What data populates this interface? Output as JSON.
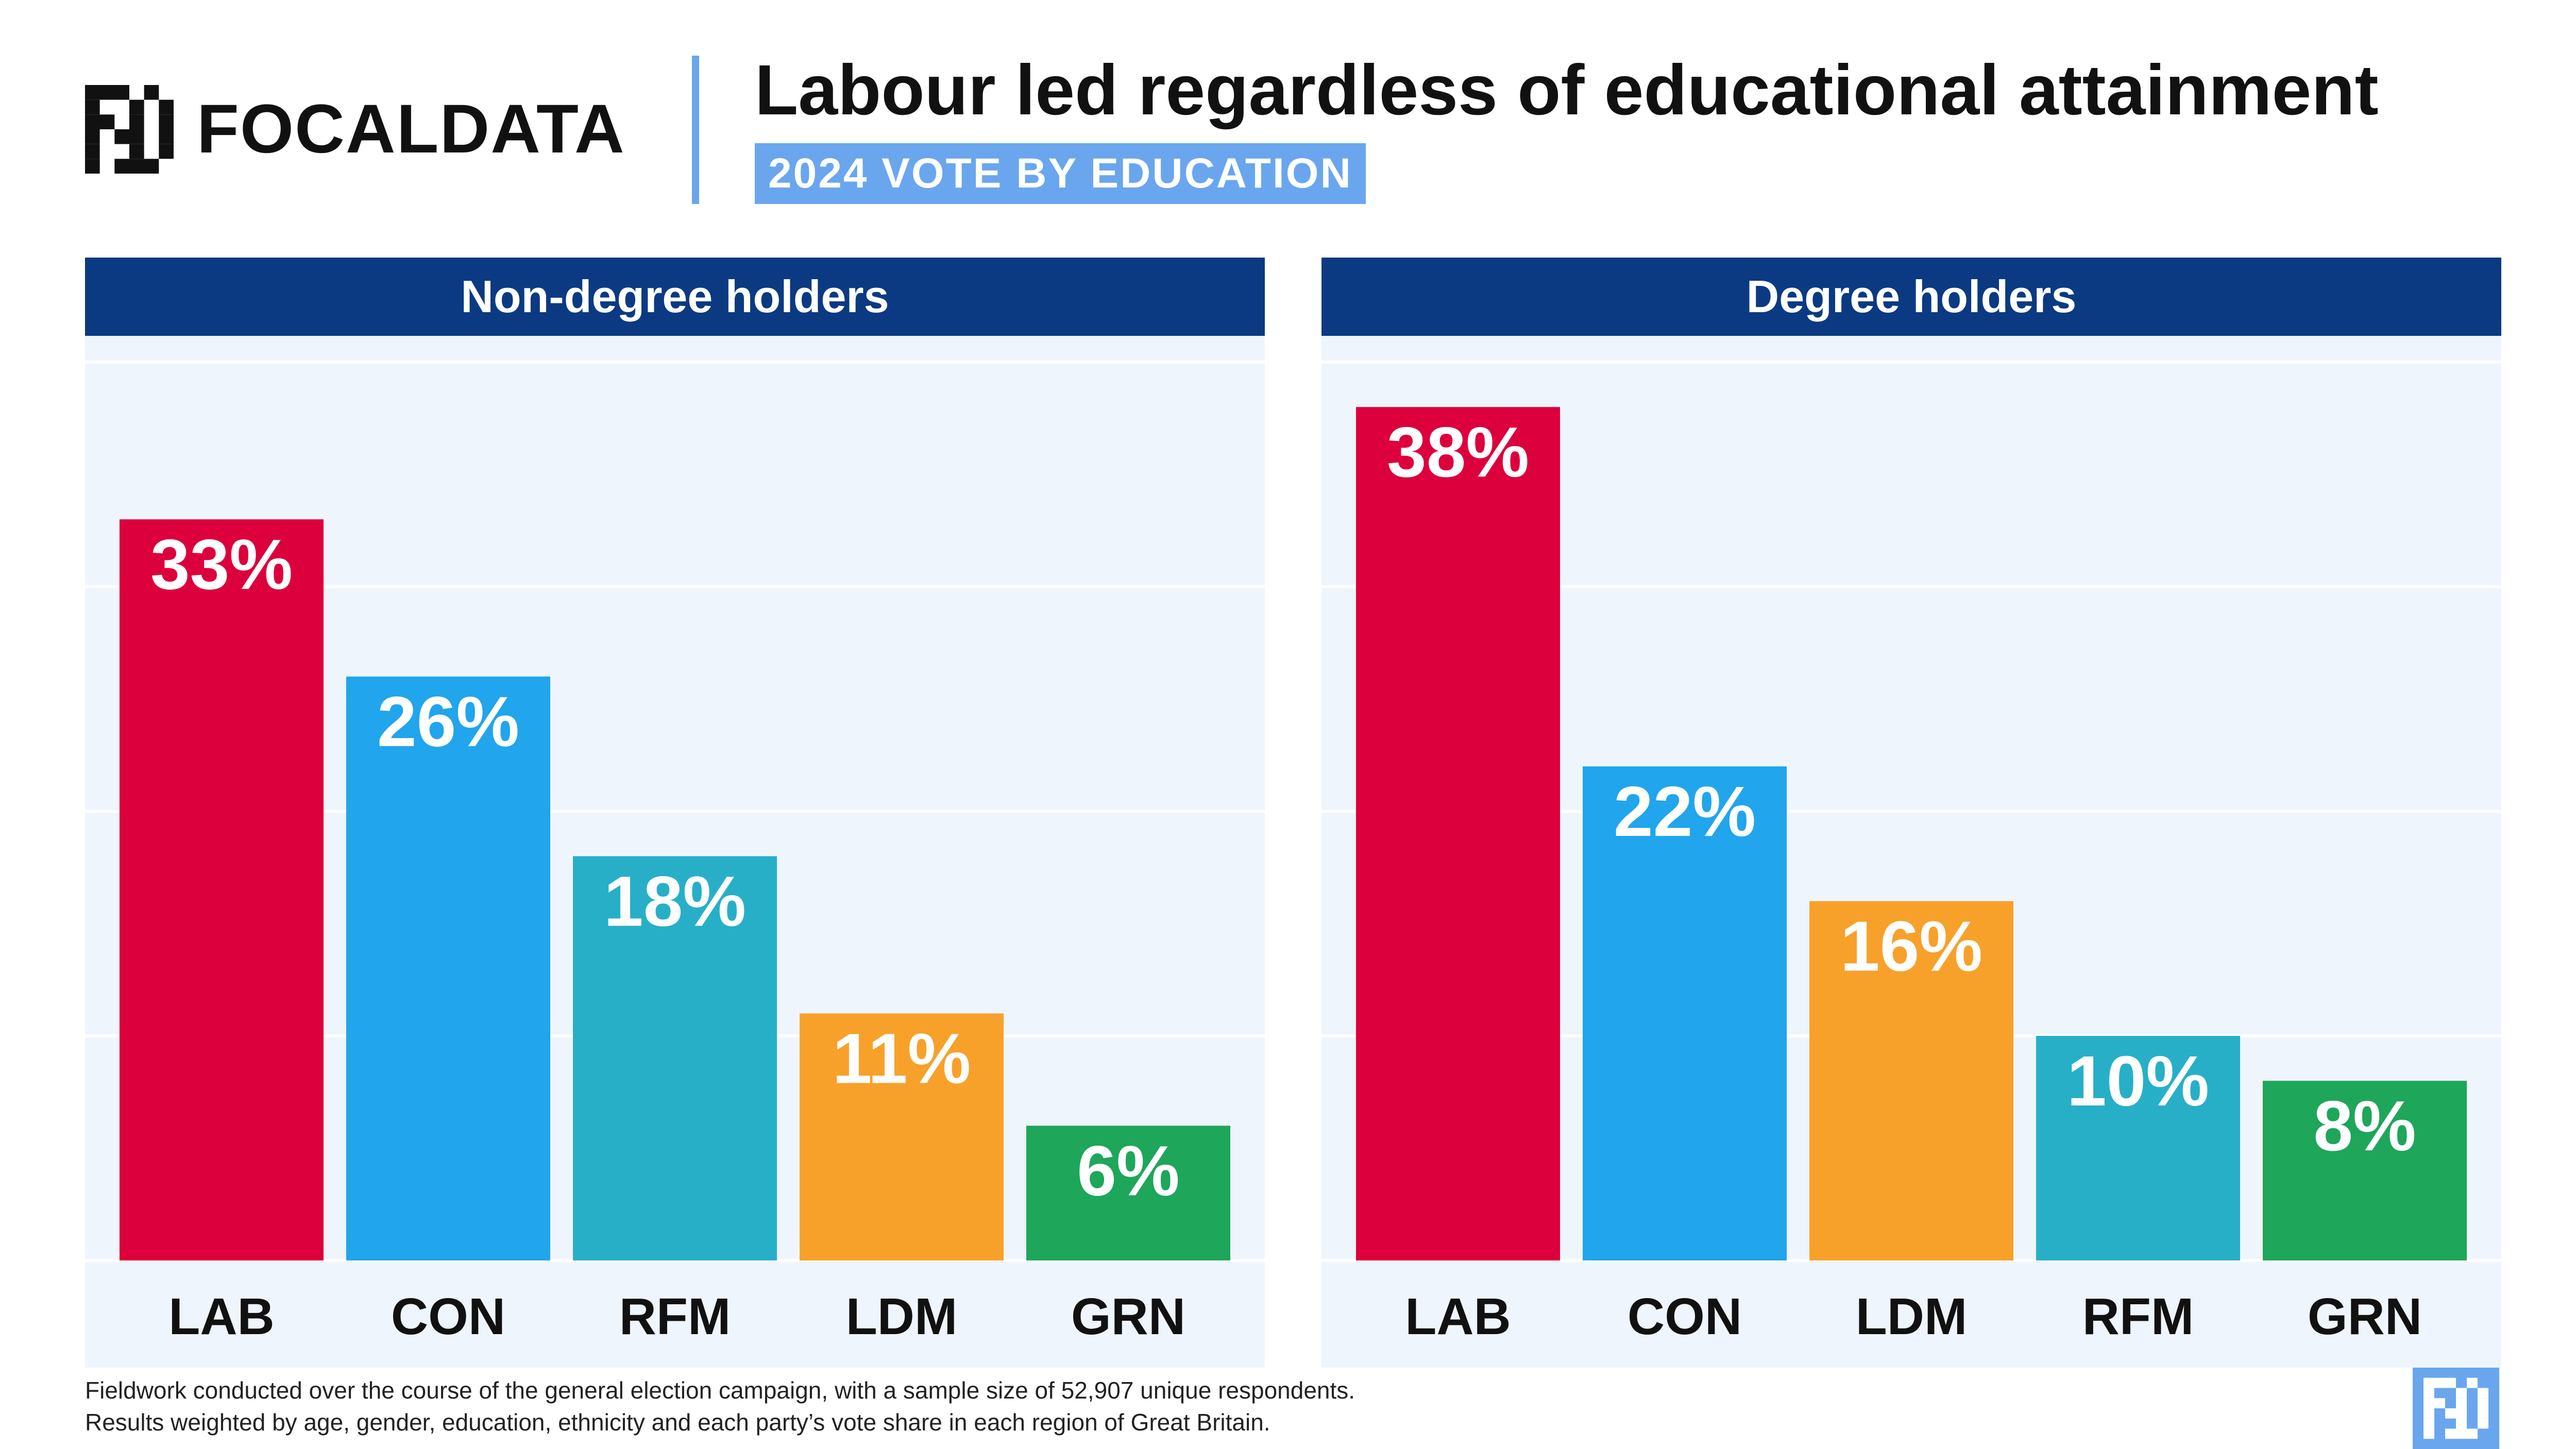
{
  "header": {
    "logo_text": "FOCALDATA",
    "title": "Labour led regardless of educational attainment",
    "subtitle": "2024 VOTE BY EDUCATION"
  },
  "chart_data": [
    {
      "type": "bar",
      "title": "Non-degree holders",
      "categories": [
        "LAB",
        "CON",
        "RFM",
        "LDM",
        "GRN"
      ],
      "values": [
        33,
        26,
        18,
        11,
        6
      ],
      "value_labels": [
        "33%",
        "26%",
        "18%",
        "11%",
        "6%"
      ],
      "colors": [
        "#dc003c",
        "#21a5ec",
        "#28afc8",
        "#f7a12a",
        "#1ea65a"
      ],
      "ylim": [
        0,
        40
      ],
      "grid": true
    },
    {
      "type": "bar",
      "title": "Degree holders",
      "categories": [
        "LAB",
        "CON",
        "LDM",
        "RFM",
        "GRN"
      ],
      "values": [
        38,
        22,
        16,
        10,
        8
      ],
      "value_labels": [
        "38%",
        "22%",
        "16%",
        "10%",
        "8%"
      ],
      "colors": [
        "#dc003c",
        "#21a5ec",
        "#f7a12a",
        "#28afc8",
        "#1ea65a"
      ],
      "ylim": [
        0,
        40
      ],
      "grid": true
    }
  ],
  "footer": {
    "line1": "Fieldwork conducted over the course of the general election campaign, with a sample size of 52,907 unique respondents.",
    "line2": "Results weighted by age, gender, education, ethnicity and each party’s vote share in each region of Great Britain."
  },
  "icons": {
    "logo": "focaldata-logo-icon",
    "corner": "focaldata-mark-icon"
  }
}
